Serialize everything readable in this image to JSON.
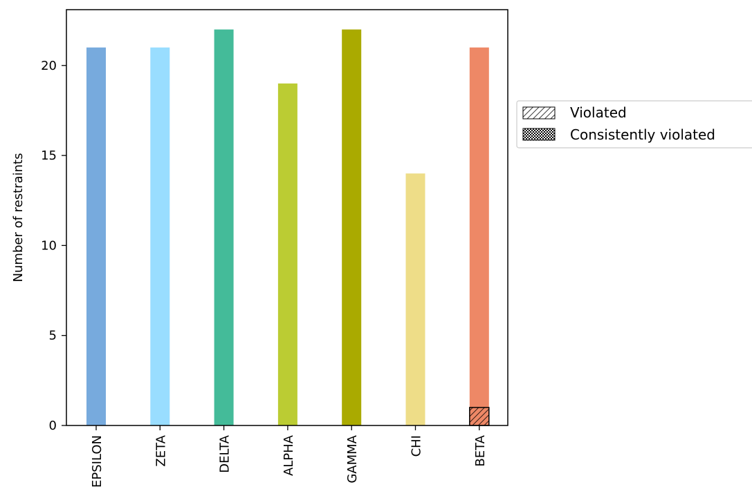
{
  "chart_data": {
    "type": "bar",
    "title": "",
    "xlabel": "",
    "ylabel": "Number of restraints",
    "categories": [
      "EPSILON",
      "ZETA",
      "DELTA",
      "ALPHA",
      "GAMMA",
      "CHI",
      "BETA"
    ],
    "colors": [
      "#77aadd",
      "#99ddff",
      "#44bb99",
      "#bbcc33",
      "#aaaa00",
      "#eedd88",
      "#ee8866"
    ],
    "series": [
      {
        "name": "",
        "values": [
          21,
          21,
          22,
          19,
          22,
          14,
          21
        ]
      },
      {
        "name": "Violated",
        "values": [
          0,
          0,
          0,
          0,
          0,
          0,
          1
        ]
      },
      {
        "name": "Consistently violated",
        "values": [
          0,
          0,
          0,
          0,
          0,
          0,
          0
        ]
      }
    ],
    "ylim": [
      0,
      23.1
    ],
    "yticks": [
      0,
      5,
      10,
      15,
      20
    ],
    "grid": false,
    "legend_position": "right, outside plot area"
  },
  "legend": {
    "violated": "Violated",
    "consistently_violated": "Consistently violated"
  },
  "axes": {
    "ylabel": "Number of restraints"
  }
}
